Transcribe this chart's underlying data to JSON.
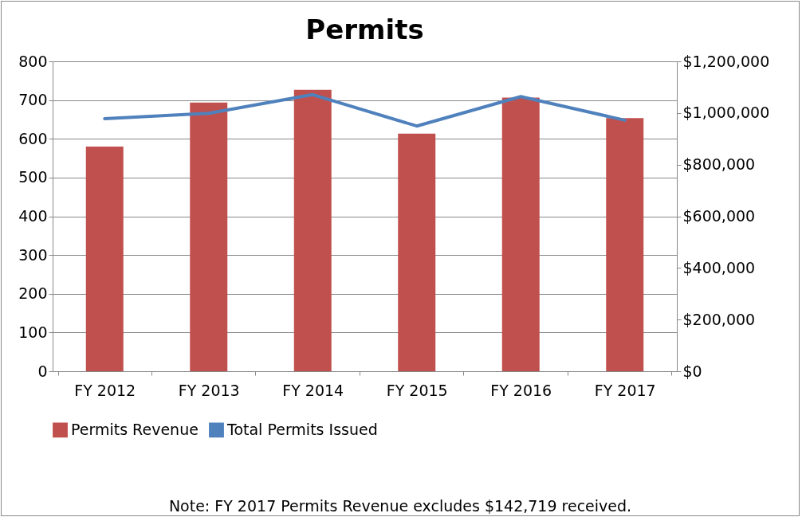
{
  "chart_data": {
    "type": "bar",
    "title": "Permits",
    "categories": [
      "FY 2012",
      "FY 2013",
      "FY 2014",
      "FY 2015",
      "FY 2016",
      "FY 2017"
    ],
    "series": [
      {
        "name": "Permits Revenue",
        "axis": "y2",
        "color": "#c0504d",
        "values": [
          870000,
          1040000,
          1090000,
          920000,
          1060000,
          980000
        ]
      },
      {
        "name": "Total Permits Issued",
        "type": "line",
        "color": "#4f81bd",
        "values": [
          652,
          666,
          714,
          633,
          709,
          648
        ]
      }
    ],
    "ylim": [
      0,
      800
    ],
    "yticks": [
      0,
      100,
      200,
      300,
      400,
      500,
      600,
      700,
      800
    ],
    "y2lim": [
      0,
      1200000
    ],
    "y2ticks": [
      {
        "value": 0,
        "label": "$0"
      },
      {
        "value": 200000,
        "label": "$200,000"
      },
      {
        "value": 400000,
        "label": "$400,000"
      },
      {
        "value": 600000,
        "label": "$600,000"
      },
      {
        "value": 800000,
        "label": "$800,000"
      },
      {
        "value": 1000000,
        "label": "$1,000,000"
      },
      {
        "value": 1200000,
        "label": "$1,200,000"
      }
    ],
    "grid": "y",
    "legend": "bottom",
    "annotations": [
      "Note: FY 2017 Permits Revenue excludes $142,719 received."
    ]
  }
}
